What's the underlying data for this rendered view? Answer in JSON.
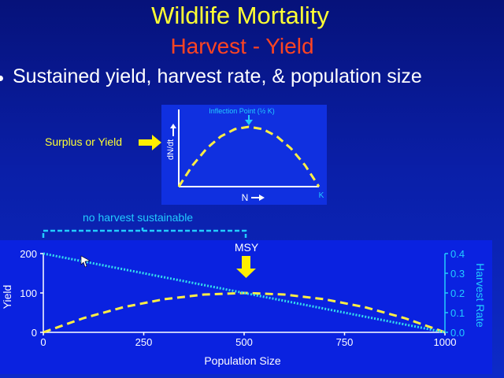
{
  "slide": {
    "title": "Wildlife Mortality",
    "subtitle": "Harvest - Yield",
    "bullet": "Sustained yield, harvest rate, & population size",
    "surplus_label": "Surplus or Yield",
    "no_harvest_label": "no harvest sustainable",
    "msy_label": "MSY",
    "colors": {
      "title": "#ffff33",
      "subtitle": "#ff4422",
      "yield_curve": "#ffee44",
      "harvest_line": "#33ddee",
      "annotation": "#22ccff"
    }
  },
  "chart_data": [
    {
      "type": "line",
      "title": "",
      "inflection_label": "Inflection Point (½ K)",
      "xlabel": "N",
      "ylabel": "dN/dt",
      "x_end_label": "K",
      "xlim": [
        0,
        1
      ],
      "ylim": [
        0,
        1
      ],
      "series": [
        {
          "x": [
            0,
            0.1,
            0.2,
            0.3,
            0.4,
            0.5,
            0.6,
            0.7,
            0.8,
            0.9,
            1.0
          ],
          "values": [
            0,
            0.36,
            0.64,
            0.84,
            0.96,
            1.0,
            0.96,
            0.84,
            0.64,
            0.36,
            0
          ]
        }
      ]
    },
    {
      "type": "line",
      "xlabel": "Population Size",
      "ylabel": "Yield",
      "y2label": "Harvest Rate",
      "xlim": [
        0,
        1000
      ],
      "ylim": [
        0,
        200
      ],
      "y2lim": [
        0,
        0.4
      ],
      "xticks": [
        "0",
        "250",
        "500",
        "750",
        "1000"
      ],
      "yticks": [
        "0",
        "100",
        "200"
      ],
      "y2ticks": [
        "0.0",
        "0.1",
        "0.2",
        "0.3",
        "0.4"
      ],
      "series": [
        {
          "axis": "left",
          "x": [
            0,
            100,
            200,
            300,
            400,
            500,
            600,
            700,
            800,
            900,
            1000
          ],
          "values": [
            0,
            36,
            64,
            84,
            96,
            100,
            96,
            84,
            64,
            36,
            0
          ]
        },
        {
          "axis": "right",
          "x": [
            0,
            1000
          ],
          "values": [
            0.4,
            0
          ]
        }
      ]
    }
  ]
}
